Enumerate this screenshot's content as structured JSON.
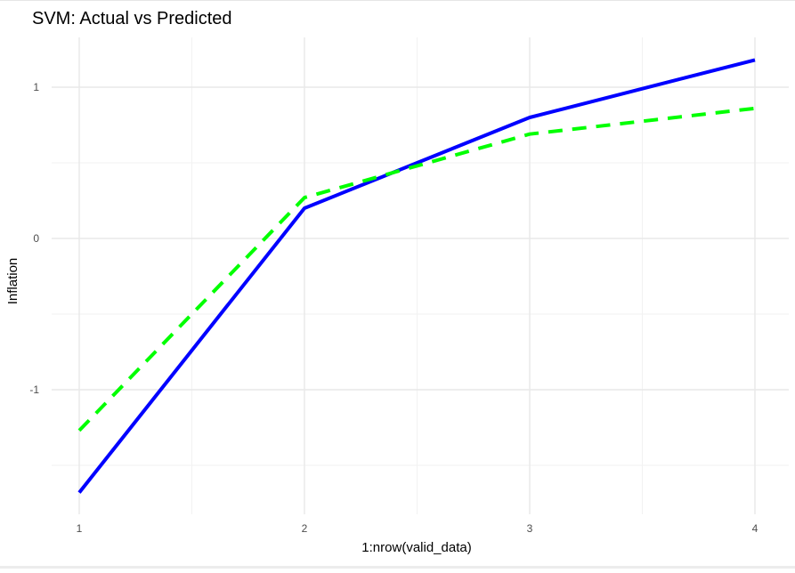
{
  "chart_data": {
    "type": "line",
    "title": "SVM: Actual vs Predicted",
    "xlabel": "1:nrow(valid_data)",
    "ylabel": "Inflation",
    "x": [
      1,
      2,
      3,
      4
    ],
    "xlim": [
      1,
      4
    ],
    "ylim": [
      -1.8,
      1.3
    ],
    "xticks": [
      1,
      2,
      3,
      4
    ],
    "xtick_labels": [
      "1",
      "2",
      "3",
      "4"
    ],
    "yticks": [
      -1,
      0,
      1
    ],
    "ytick_labels": [
      "-1",
      "0",
      "1"
    ],
    "grid": true,
    "legend": "none",
    "series": [
      {
        "values": [
          -1.68,
          0.2,
          0.8,
          1.18
        ],
        "color": "#0000ff",
        "style": "solid"
      },
      {
        "values": [
          -1.27,
          0.27,
          0.69,
          0.86
        ],
        "color": "#00ff00",
        "style": "dashed"
      }
    ]
  }
}
